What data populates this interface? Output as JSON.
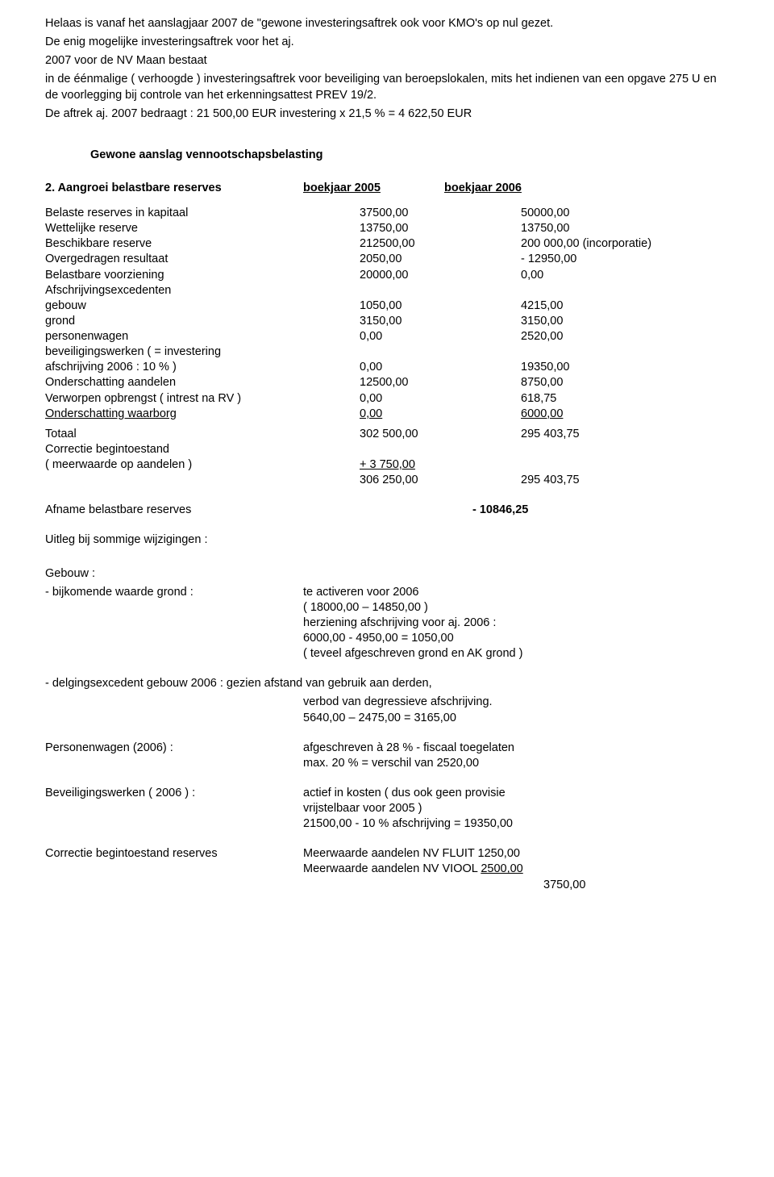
{
  "intro": {
    "p1": "Helaas is vanaf het aanslagjaar 2007 de \"gewone investeringsaftrek ook voor KMO's op nul gezet.",
    "p2": "De enig mogelijke investeringsaftrek voor het aj.",
    "p3": "2007 voor de NV Maan bestaat",
    "p4": "in de éénmalige ( verhoogde ) investeringsaftrek voor beveiliging van beroepslokalen, mits het indienen van een opgave 275 U en de voorlegging bij controle van het erkenningsattest PREV 19/2.",
    "p5": "De aftrek aj. 2007 bedraagt :  21 500,00 EUR investering x 21,5 % =  4 622,50 EUR"
  },
  "section_heading": "Gewone aanslag vennootschapsbelasting",
  "header2": {
    "label": "2. Aangroei belastbare reserves",
    "col1": "boekjaar 2005",
    "col2": "boekjaar 2006"
  },
  "rows": [
    {
      "l": "Belaste reserves in kapitaal",
      "a": "37500,00",
      "b": "50000,00",
      "ul": false
    },
    {
      "l": "Wettelijke reserve",
      "a": "13750,00",
      "b": "13750,00",
      "ul": false
    },
    {
      "l": "Beschikbare reserve",
      "a": "212500,00",
      "b": "200 000,00 (incorporatie)",
      "ul": false
    },
    {
      "l": "Overgedragen resultaat",
      "a": "2050,00",
      "b": "- 12950,00",
      "ul": false
    },
    {
      "l": "Belastbare voorziening",
      "a": "20000,00",
      "b": "0,00",
      "ul": false
    },
    {
      "l": "Afschrijvingsexcedenten",
      "a": "",
      "b": "",
      "ul": false
    },
    {
      "l": "gebouw",
      "a": "1050,00",
      "b": "4215,00",
      "ul": false
    },
    {
      "l": "grond",
      "a": "3150,00",
      "b": "3150,00",
      "ul": false
    },
    {
      "l": "personenwagen",
      "a": "0,00",
      "b": "2520,00",
      "ul": false
    },
    {
      "l": "beveiligingswerken ( = investering",
      "a": "",
      "b": "",
      "ul": false
    },
    {
      "l": "afschrijving 2006 : 10 % )",
      "a": "0,00",
      "b": "19350,00",
      "ul": false
    },
    {
      "l": "Onderschatting aandelen",
      "a": "12500,00",
      "b": "8750,00",
      "ul": false
    },
    {
      "l": "Verworpen opbrengst ( intrest na RV )",
      "a": "0,00",
      "b": "618,75",
      "ul": false
    },
    {
      "l": "Onderschatting waarborg",
      "a": "0,00",
      "b": "6000,00",
      "ul": true
    }
  ],
  "totaal": {
    "l": "Totaal",
    "a": "302 500,00",
    "b": "295 403,75"
  },
  "correctie": {
    "l1": "Correctie begintoestand",
    "l2": "( meerwaarde op aandelen )",
    "a": "+  3 750,00",
    "sum_a": "306 250,00",
    "sum_b": "295 403,75"
  },
  "afname": {
    "l": "Afname belastbare reserves",
    "v": "- 10846,25"
  },
  "uitleg_heading": "Uitleg bij sommige wijzigingen :",
  "gebouw": {
    "title": "Gebouw        :",
    "r1l": "- bijkomende waarde grond       :",
    "r1a": "te activeren voor 2006",
    "r1b": "( 18000,00 – 14850,00 )",
    "r1c": "herziening afschrijving voor aj. 2006 :",
    "r1d": "6000,00 - 4950,00 = 1050,00",
    "r1e": "( teveel afgeschreven grond en AK grond )"
  },
  "delging": {
    "r1": "- delgingsexcedent gebouw 2006 : gezien afstand van gebruik aan derden,",
    "r2": "verbod van degressieve afschrijving.",
    "r3": "5640,00 – 2475,00 = 3165,00"
  },
  "personenwagen": {
    "l": "Personenwagen (2006)       :",
    "r1": "afgeschreven à 28 % - fiscaal toegelaten",
    "r2": "max. 20 % = verschil van 2520,00"
  },
  "beveiliging": {
    "l": "Beveiligingswerken ( 2006 ) :",
    "r1": "actief in kosten ( dus ook geen provisie",
    "r2": "vrijstelbaar voor 2005 )",
    "r3": "21500,00 - 10 % afschrijving =  19350,00"
  },
  "correctie2": {
    "l": "Correctie begintoestand reserves",
    "r1": "Meerwaarde aandelen NV FLUIT    1250,00",
    "r2": "Meerwaarde aandelen NV VIOOL ",
    "r2b": "2500,00",
    "r3": "3750,00"
  }
}
